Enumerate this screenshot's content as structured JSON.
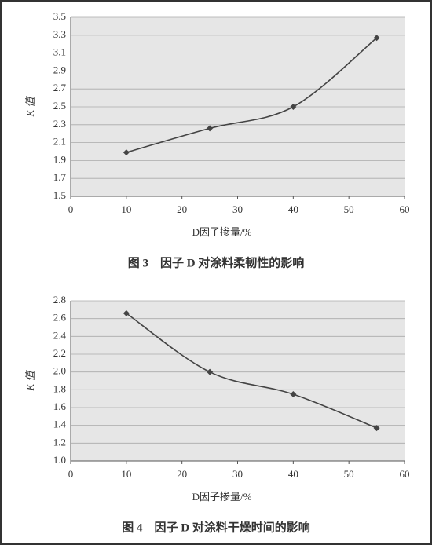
{
  "chart_data": [
    {
      "type": "line",
      "ylabel": "K 值",
      "xlabel": "D因子掺量/%",
      "caption": "图 3　因子 D 对涂料柔韧性的影响",
      "x": [
        10,
        25,
        40,
        55
      ],
      "values": [
        1.99,
        2.26,
        2.5,
        3.27
      ],
      "color": "#444444",
      "xlim": [
        0,
        60
      ],
      "xticks": [
        0,
        10,
        20,
        30,
        40,
        50,
        60
      ],
      "ylim": [
        1.5,
        3.5
      ],
      "yticks": [
        1.5,
        1.7,
        1.9,
        2.1,
        2.3,
        2.5,
        2.7,
        2.9,
        3.1,
        3.3,
        3.5
      ],
      "grid": true
    },
    {
      "type": "line",
      "ylabel": "K 值",
      "xlabel": "D因子掺量/%",
      "caption": "图 4　因子 D 对涂料干燥时间的影响",
      "x": [
        10,
        25,
        40,
        55
      ],
      "values": [
        2.66,
        2.0,
        1.75,
        1.37
      ],
      "color": "#444444",
      "xlim": [
        0,
        60
      ],
      "xticks": [
        0,
        10,
        20,
        30,
        40,
        50,
        60
      ],
      "ylim": [
        1.0,
        2.8
      ],
      "yticks": [
        {
          "value": 1.0,
          "label": "1.0"
        },
        1.2,
        1.4,
        1.6,
        1.8,
        {
          "value": 2.0,
          "label": "2.0"
        },
        2.2,
        2.4,
        2.6,
        2.8
      ],
      "grid": true
    }
  ]
}
